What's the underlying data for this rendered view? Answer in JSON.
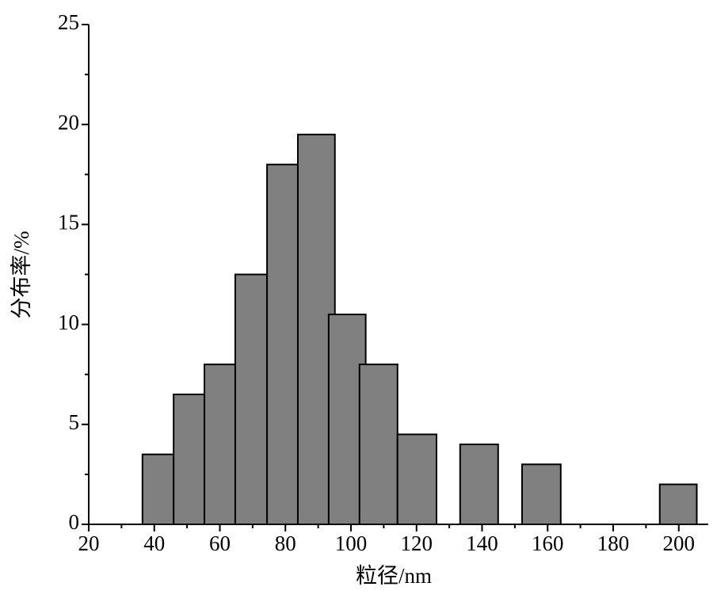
{
  "chart_data": {
    "type": "bar",
    "x_label": "粒径/nm",
    "y_label": "分布率/%",
    "x_start": [
      36.4,
      45.9,
      55.3,
      64.7,
      74.4,
      83.8,
      93.2,
      102.6,
      114.2,
      133.3,
      152.2,
      194.2
    ],
    "x_end": [
      45.9,
      55.3,
      64.7,
      74.4,
      83.8,
      95.1,
      104.5,
      114.2,
      126.1,
      144.9,
      164.0,
      205.5
    ],
    "values": [
      3.5,
      6.5,
      8,
      12.5,
      18,
      19.5,
      10.5,
      8,
      4.5,
      4,
      3,
      2
    ],
    "color": "#808080",
    "xlim": [
      20,
      209
    ],
    "xticks": [
      20,
      40,
      60,
      80,
      100,
      120,
      140,
      160,
      180,
      200
    ],
    "xminorticks": [
      30,
      50,
      70,
      90,
      110,
      130,
      150,
      170,
      190
    ],
    "ylim": [
      0,
      25
    ],
    "yticks": [
      0,
      5,
      10,
      15,
      20,
      25
    ],
    "yminorticks": [
      2.5,
      7.5,
      12.5,
      17.5,
      22.5
    ]
  }
}
